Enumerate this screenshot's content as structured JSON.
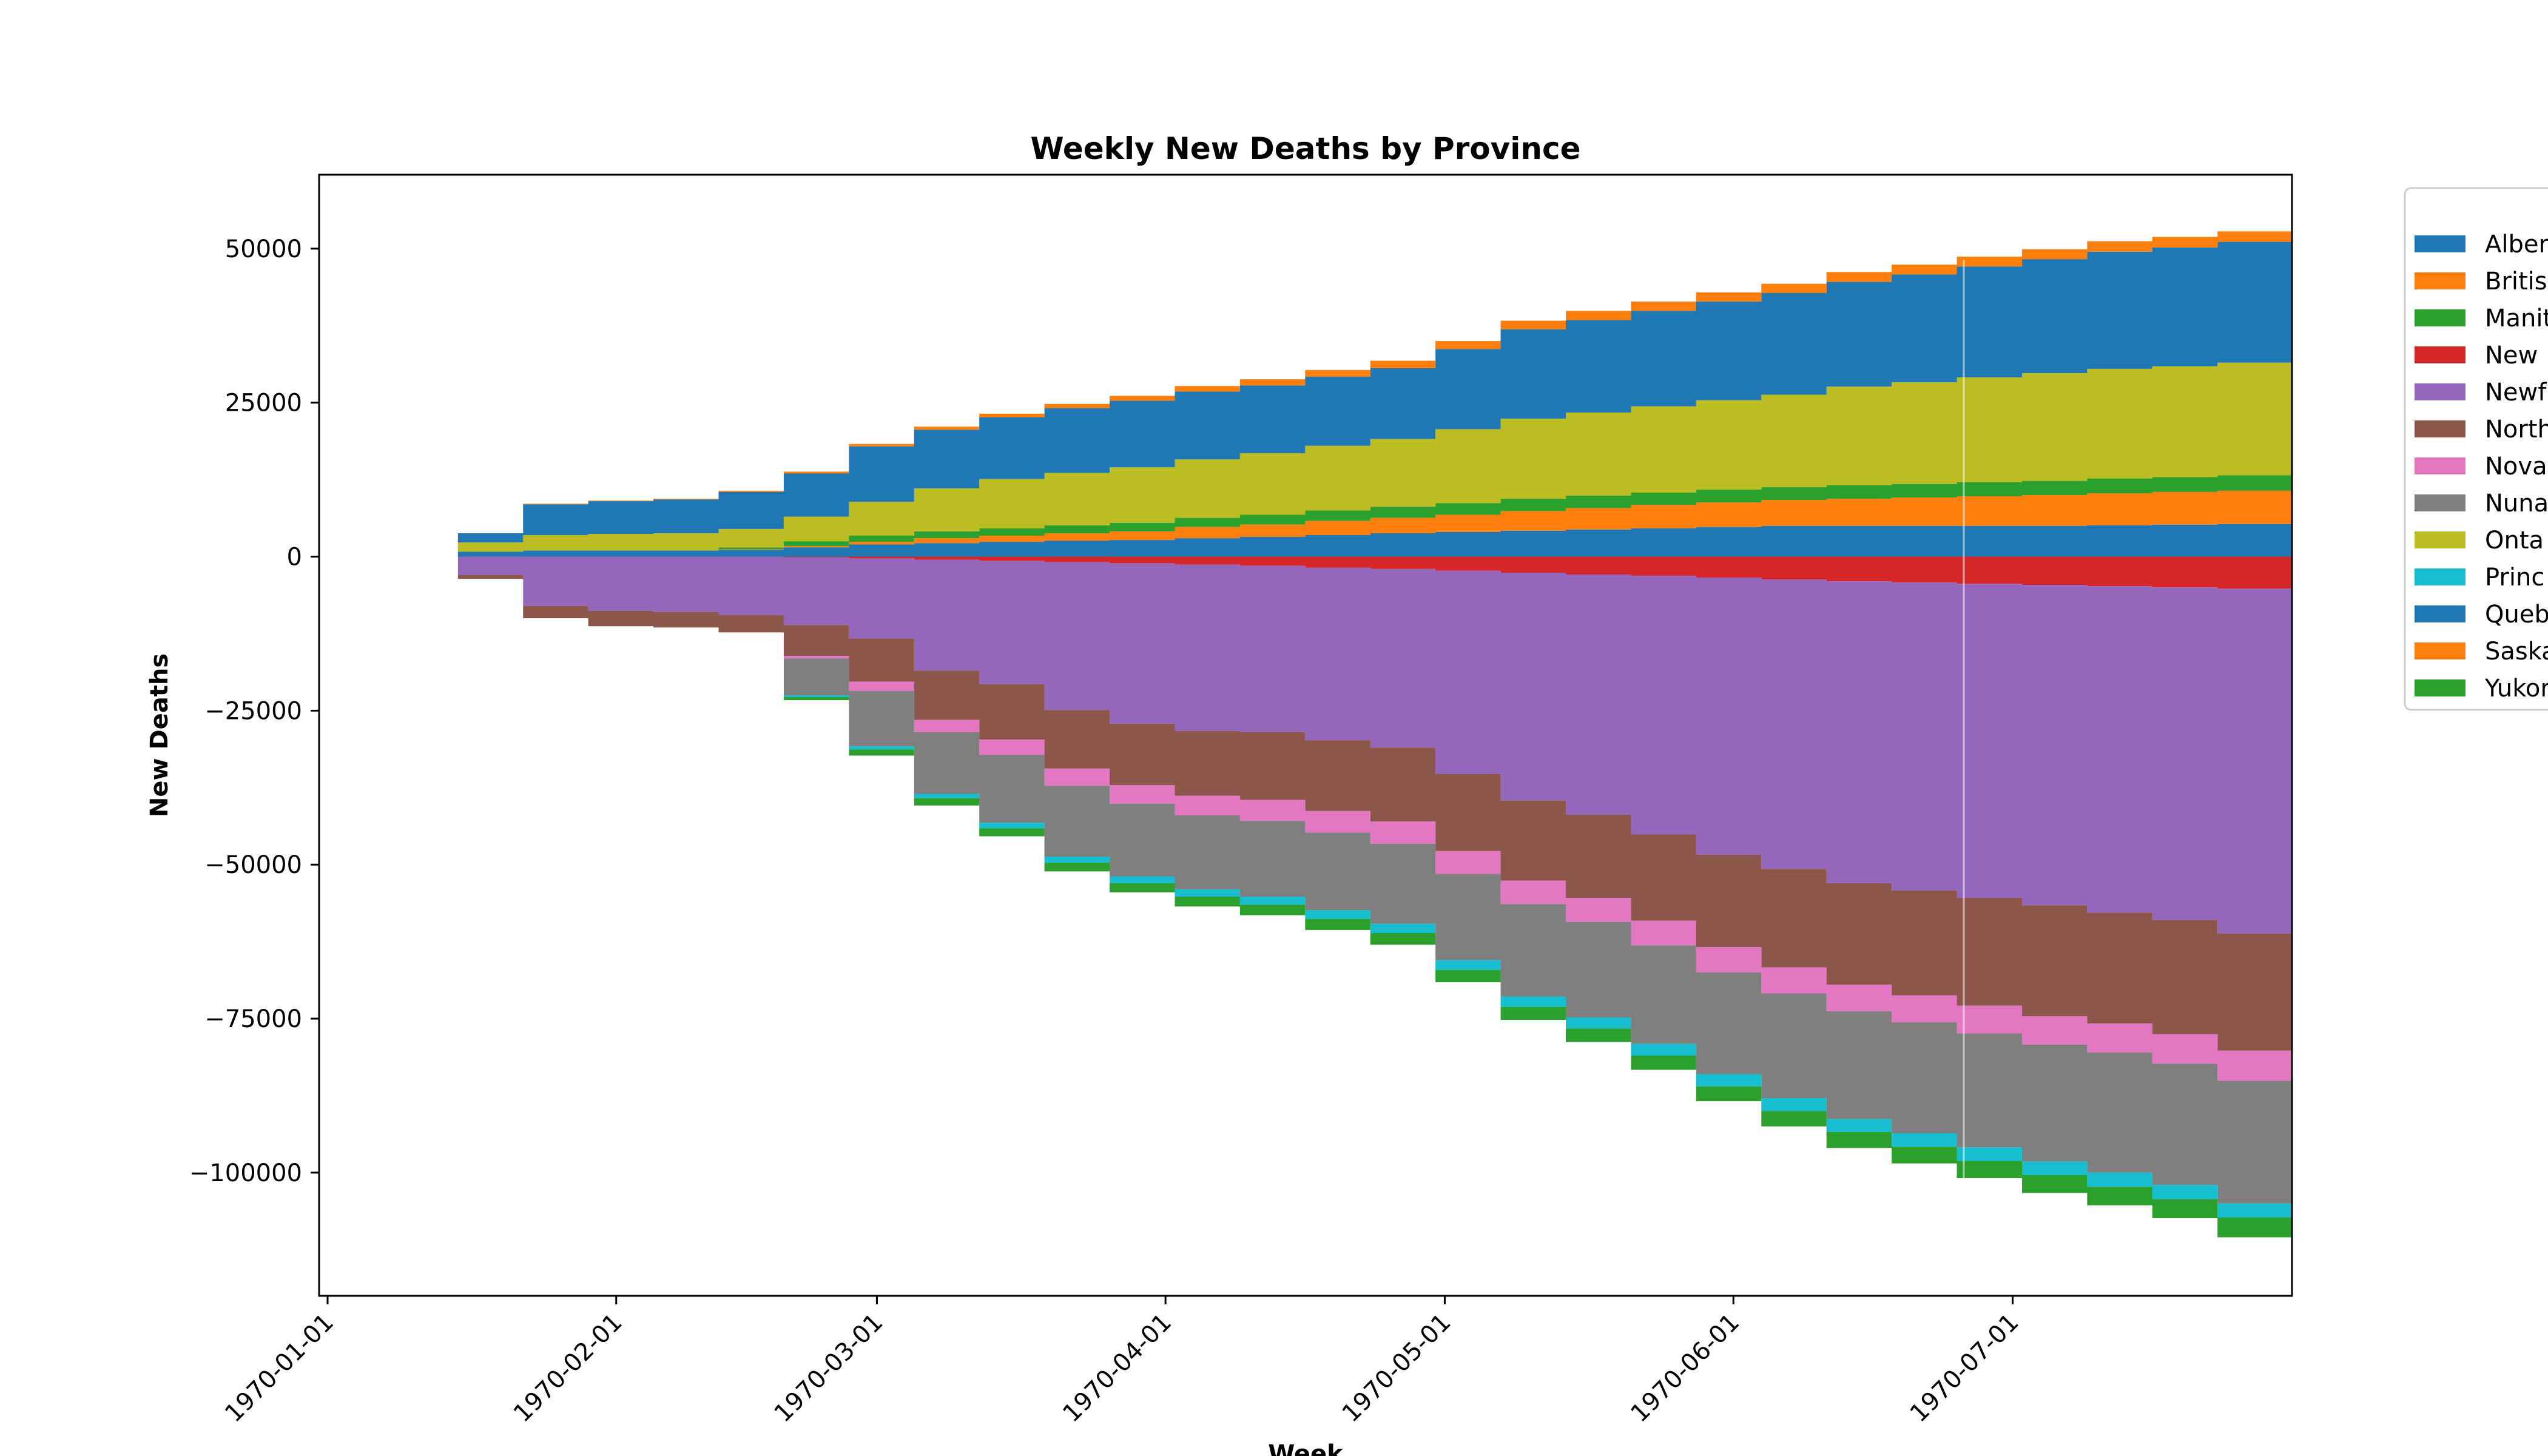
{
  "chart_data": {
    "type": "area",
    "style": "stacked, diverging, stepwise",
    "title": "Weekly New Deaths by Province",
    "xlabel": "Week",
    "ylabel": "New Deaths",
    "x_range": [
      "1970-01-01",
      "1970-07-31"
    ],
    "ylim": [
      -120000,
      62000
    ],
    "yticks": [
      50000,
      25000,
      0,
      -25000,
      -50000,
      -75000,
      -100000
    ],
    "ytick_labels": [
      "50000",
      "25000",
      "0",
      "−25000",
      "−50000",
      "−75000",
      "−100000"
    ],
    "xticks": [
      "1970-01-01",
      "1970-02-01",
      "1970-03-01",
      "1970-04-01",
      "1970-05-01",
      "1970-06-01",
      "1970-07-01"
    ],
    "grid": false,
    "legend_position": "right, outside plot",
    "x_dates": [
      "1970-01-08",
      "1970-01-15",
      "1970-01-22",
      "1970-01-29",
      "1970-02-05",
      "1970-02-12",
      "1970-02-19",
      "1970-02-26",
      "1970-03-05",
      "1970-03-12",
      "1970-03-19",
      "1970-03-26",
      "1970-04-02",
      "1970-04-09",
      "1970-04-16",
      "1970-04-23",
      "1970-04-30",
      "1970-05-07",
      "1970-05-14",
      "1970-05-21",
      "1970-05-28",
      "1970-06-04",
      "1970-06-11",
      "1970-06-18",
      "1970-06-25",
      "1970-07-02",
      "1970-07-09",
      "1970-07-16",
      "1970-07-23",
      "1970-07-31"
    ],
    "series": [
      {
        "name": "Alberta",
        "color": "#1f77b4",
        "values": [
          0,
          800,
          1000,
          1000,
          1000,
          1100,
          1500,
          2000,
          2200,
          2400,
          2600,
          2700,
          3000,
          3200,
          3500,
          3800,
          4000,
          4200,
          4400,
          4600,
          4800,
          5000,
          5000,
          5000,
          5000,
          5000,
          5100,
          5200,
          5300,
          5400
        ]
      },
      {
        "name": "British Columbia",
        "color": "#ff7f0e",
        "values": [
          0,
          0,
          0,
          0,
          0,
          100,
          200,
          400,
          800,
          1000,
          1200,
          1400,
          1800,
          2000,
          2300,
          2500,
          2800,
          3200,
          3500,
          3800,
          4000,
          4200,
          4400,
          4600,
          4800,
          5000,
          5200,
          5300,
          5400,
          5500
        ]
      },
      {
        "name": "Manitoba",
        "color": "#2ca02c",
        "values": [
          0,
          0,
          0,
          0,
          0,
          300,
          800,
          1000,
          1100,
          1200,
          1300,
          1400,
          1500,
          1600,
          1700,
          1800,
          1900,
          2000,
          2000,
          2000,
          2100,
          2100,
          2200,
          2200,
          2300,
          2300,
          2400,
          2400,
          2500,
          2500
        ]
      },
      {
        "name": "New Brunswick",
        "color": "#d62728",
        "values": [
          0,
          0,
          0,
          0,
          0,
          0,
          100,
          300,
          500,
          700,
          900,
          1100,
          1300,
          1500,
          1800,
          2000,
          2300,
          2600,
          2900,
          3100,
          3400,
          3700,
          4000,
          4200,
          4400,
          4600,
          4800,
          5000,
          5200,
          5400
        ]
      },
      {
        "name": "Newfoundland and Labrador",
        "color": "#9467bd",
        "values": [
          0,
          3000,
          8000,
          8800,
          9000,
          9500,
          11000,
          13000,
          18000,
          20000,
          24000,
          26000,
          27000,
          27000,
          28000,
          29000,
          33000,
          37000,
          39000,
          42000,
          45000,
          47000,
          49000,
          50000,
          51000,
          52000,
          53000,
          54000,
          56000,
          58000
        ]
      },
      {
        "name": "Northwest Territories",
        "color": "#8c564b",
        "values": [
          0,
          600,
          2000,
          2500,
          2500,
          2800,
          5000,
          7000,
          8000,
          9000,
          9500,
          10000,
          10500,
          11000,
          11500,
          12000,
          12500,
          13000,
          13500,
          14000,
          15000,
          16000,
          16500,
          17000,
          17500,
          18000,
          18000,
          18500,
          19000,
          19000
        ]
      },
      {
        "name": "Nova Scotia",
        "color": "#e377c2",
        "values": [
          0,
          0,
          0,
          0,
          0,
          0,
          400,
          1500,
          2000,
          2500,
          2800,
          3000,
          3200,
          3400,
          3500,
          3600,
          3700,
          3800,
          3900,
          4000,
          4100,
          4200,
          4300,
          4400,
          4500,
          4600,
          4700,
          4800,
          4900,
          5000
        ]
      },
      {
        "name": "Nunavut",
        "color": "#7f7f7f",
        "values": [
          0,
          0,
          0,
          0,
          0,
          0,
          6000,
          9000,
          10000,
          11000,
          11500,
          11800,
          12000,
          12300,
          12600,
          13000,
          14000,
          15000,
          15500,
          16000,
          16500,
          17000,
          17500,
          18000,
          18500,
          19000,
          19500,
          19700,
          19900,
          20000
        ]
      },
      {
        "name": "Ontario",
        "color": "#bcbd22",
        "values": [
          0,
          1500,
          2500,
          2700,
          2800,
          3000,
          4000,
          5500,
          7000,
          8000,
          8500,
          9000,
          9500,
          10000,
          10500,
          11000,
          12000,
          13000,
          13500,
          14000,
          14500,
          15000,
          16000,
          16500,
          17000,
          17500,
          17800,
          18000,
          18300,
          18500
        ]
      },
      {
        "name": "Prince Edward Island",
        "color": "#17becf",
        "values": [
          0,
          0,
          0,
          0,
          0,
          0,
          300,
          500,
          700,
          900,
          1000,
          1100,
          1200,
          1300,
          1400,
          1500,
          1600,
          1700,
          1800,
          1900,
          2000,
          2100,
          2100,
          2200,
          2200,
          2200,
          2300,
          2300,
          2300,
          2300
        ]
      },
      {
        "name": "Quebec",
        "color": "#1f77b4",
        "values": [
          0,
          1500,
          5000,
          5300,
          5500,
          6000,
          7000,
          9000,
          9500,
          10000,
          10500,
          10800,
          11000,
          11000,
          11200,
          11500,
          13000,
          14500,
          15000,
          15500,
          16000,
          16500,
          17000,
          17500,
          18000,
          18500,
          19000,
          19300,
          19600,
          20000
        ]
      },
      {
        "name": "Saskatchewan",
        "color": "#ff7f0e",
        "values": [
          0,
          0,
          100,
          100,
          100,
          200,
          300,
          400,
          500,
          600,
          700,
          800,
          900,
          1000,
          1100,
          1200,
          1300,
          1400,
          1500,
          1500,
          1500,
          1500,
          1600,
          1600,
          1600,
          1600,
          1700,
          1700,
          1700,
          1700
        ]
      },
      {
        "name": "Yukon",
        "color": "#2ca02c",
        "values": [
          0,
          0,
          0,
          0,
          0,
          0,
          500,
          1000,
          1200,
          1300,
          1400,
          1500,
          1600,
          1700,
          1800,
          1900,
          2000,
          2100,
          2200,
          2300,
          2400,
          2500,
          2600,
          2700,
          2800,
          2900,
          3000,
          3100,
          3200,
          3300
        ]
      }
    ],
    "positive_stack_order": [
      "Alberta",
      "British Columbia",
      "Manitoba",
      "Ontario",
      "Quebec",
      "Saskatchewan"
    ],
    "negative_stack_order": [
      "New Brunswick",
      "Newfoundland and Labrador",
      "Northwest Territories",
      "Nova Scotia",
      "Nunavut",
      "Prince Edward Island",
      "Yukon"
    ],
    "legend_entries_visible": [
      "Alber",
      "Britis",
      "Manit",
      "New ",
      "Newf",
      "North",
      "Nova",
      "Nuna",
      "Onta",
      "Princ",
      "Queb",
      "Saska",
      "Yukor"
    ]
  }
}
